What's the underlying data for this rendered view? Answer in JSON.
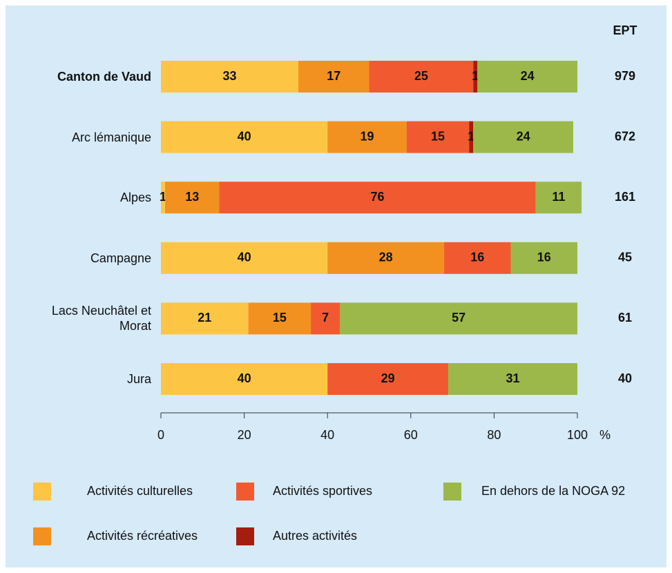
{
  "chart_data": {
    "type": "stacked_bar_horizontal",
    "categories": [
      "Canton de Vaud",
      "Arc lémanique",
      "Alpes",
      "Campagne",
      "Lacs Neuchâtel et Morat",
      "Jura"
    ],
    "series": [
      {
        "name": "Activités culturelles",
        "color": "#fdc544",
        "values": [
          33,
          40,
          1,
          40,
          21,
          40
        ]
      },
      {
        "name": "Activités récréatives",
        "color": "#f29120",
        "values": [
          17,
          19,
          13,
          28,
          15,
          null
        ]
      },
      {
        "name": "Activités sportives",
        "color": "#f15a30",
        "values": [
          25,
          15,
          76,
          16,
          7,
          29
        ]
      },
      {
        "name": "Autres activités",
        "color": "#a51d0f",
        "values": [
          1,
          1,
          null,
          null,
          null,
          null
        ]
      },
      {
        "name": "En dehors de la NOGA 92",
        "color": "#9cb84a",
        "values": [
          24,
          24,
          11,
          16,
          57,
          31
        ]
      }
    ],
    "xlim": [
      0,
      100
    ],
    "xticks": [
      0,
      20,
      40,
      60,
      80,
      100
    ],
    "x_unit": "%",
    "ept_label": "EPT",
    "ept_values": [
      979,
      672,
      161,
      45,
      61,
      40
    ]
  }
}
